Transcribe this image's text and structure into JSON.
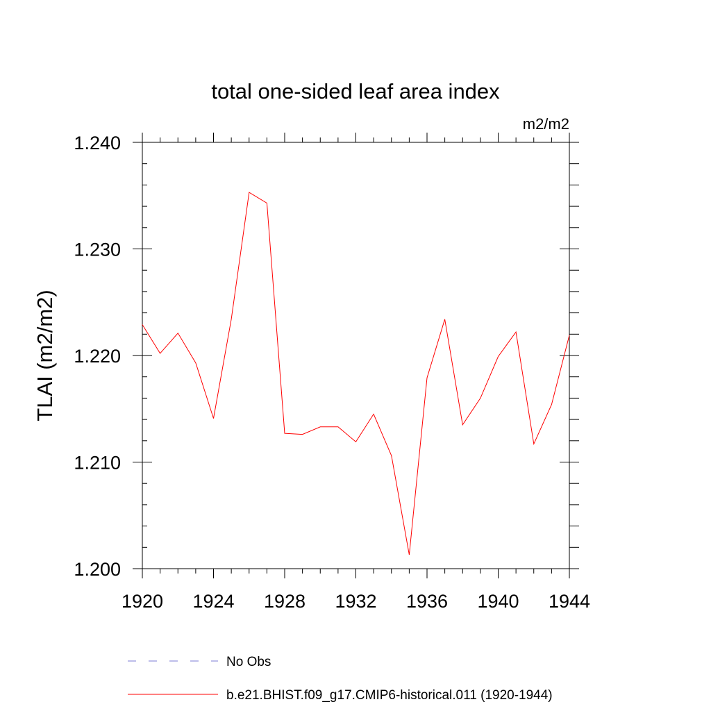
{
  "chart_data": {
    "type": "line",
    "title": "total one-sided leaf area index",
    "units_label": "m2/m2",
    "ylabel": "TLAI  (m2/m2)",
    "xlabel": "",
    "xlim": [
      1920,
      1944
    ],
    "ylim": [
      1.2,
      1.24
    ],
    "x_ticks": [
      "1920",
      "1924",
      "1928",
      "1932",
      "1936",
      "1940",
      "1944"
    ],
    "y_ticks": [
      "1.200",
      "1.210",
      "1.220",
      "1.230",
      "1.240"
    ],
    "grid": false,
    "legend_position": "bottom",
    "series": [
      {
        "name": "No Obs",
        "color": "#7b7bd6",
        "dash": "dashed",
        "x": [],
        "y": []
      },
      {
        "name": "b.e21.BHIST.f09_g17.CMIP6-historical.011 (1920-1944)",
        "color": "#ff0000",
        "dash": "solid",
        "x": [
          1920,
          1921,
          1922,
          1923,
          1924,
          1925,
          1926,
          1927,
          1928,
          1929,
          1930,
          1931,
          1932,
          1933,
          1934,
          1935,
          1936,
          1937,
          1938,
          1939,
          1940,
          1941,
          1942,
          1943,
          1944
        ],
        "y": [
          1.2229,
          1.2202,
          1.2221,
          1.2193,
          1.2141,
          1.2234,
          1.2353,
          1.2343,
          1.2127,
          1.2126,
          1.2133,
          1.2133,
          1.2119,
          1.2145,
          1.2106,
          1.2013,
          1.2179,
          1.2234,
          1.2135,
          1.216,
          1.2199,
          1.2222,
          1.2117,
          1.2154,
          1.2219
        ]
      }
    ]
  }
}
